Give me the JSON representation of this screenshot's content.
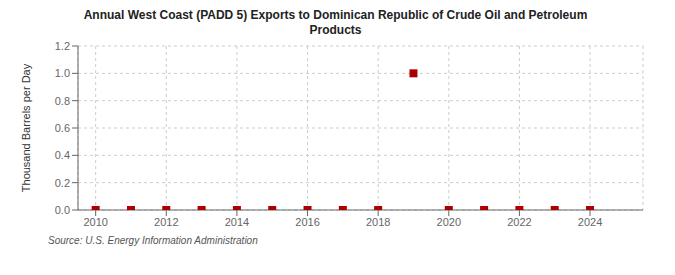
{
  "chart_data": {
    "type": "scatter",
    "title": "Annual West Coast (PADD 5) Exports to Dominican Republic of Crude Oil and Petroleum\nProducts",
    "ylabel": "Thousand Barrels per Day",
    "source": "Source: U.S. Energy Information Administration",
    "x": [
      2010,
      2011,
      2012,
      2013,
      2014,
      2015,
      2016,
      2017,
      2018,
      2019,
      2020,
      2021,
      2022,
      2023,
      2024
    ],
    "values": [
      0.0,
      0.0,
      0.0,
      0.0,
      0.0,
      0.0,
      0.0,
      0.0,
      0.0,
      1.0,
      0.0,
      0.0,
      0.0,
      0.0,
      0.0
    ],
    "color": "#aa0000",
    "marker": "square",
    "xlim": [
      2009.5,
      2025.5
    ],
    "xticks": [
      2010,
      2012,
      2014,
      2016,
      2018,
      2020,
      2022,
      2024
    ],
    "ylim": [
      0,
      1.2
    ],
    "yticks": [
      {
        "value": 0,
        "label": "0.0"
      },
      {
        "value": 0.2,
        "label": "0.2"
      },
      {
        "value": 0.4,
        "label": "0.4"
      },
      {
        "value": 0.6,
        "label": "0.6"
      },
      {
        "value": 0.8,
        "label": "0.8"
      },
      {
        "value": 1,
        "label": "1.0"
      },
      {
        "value": 1.2,
        "label": "1.2"
      }
    ],
    "grid": true
  }
}
